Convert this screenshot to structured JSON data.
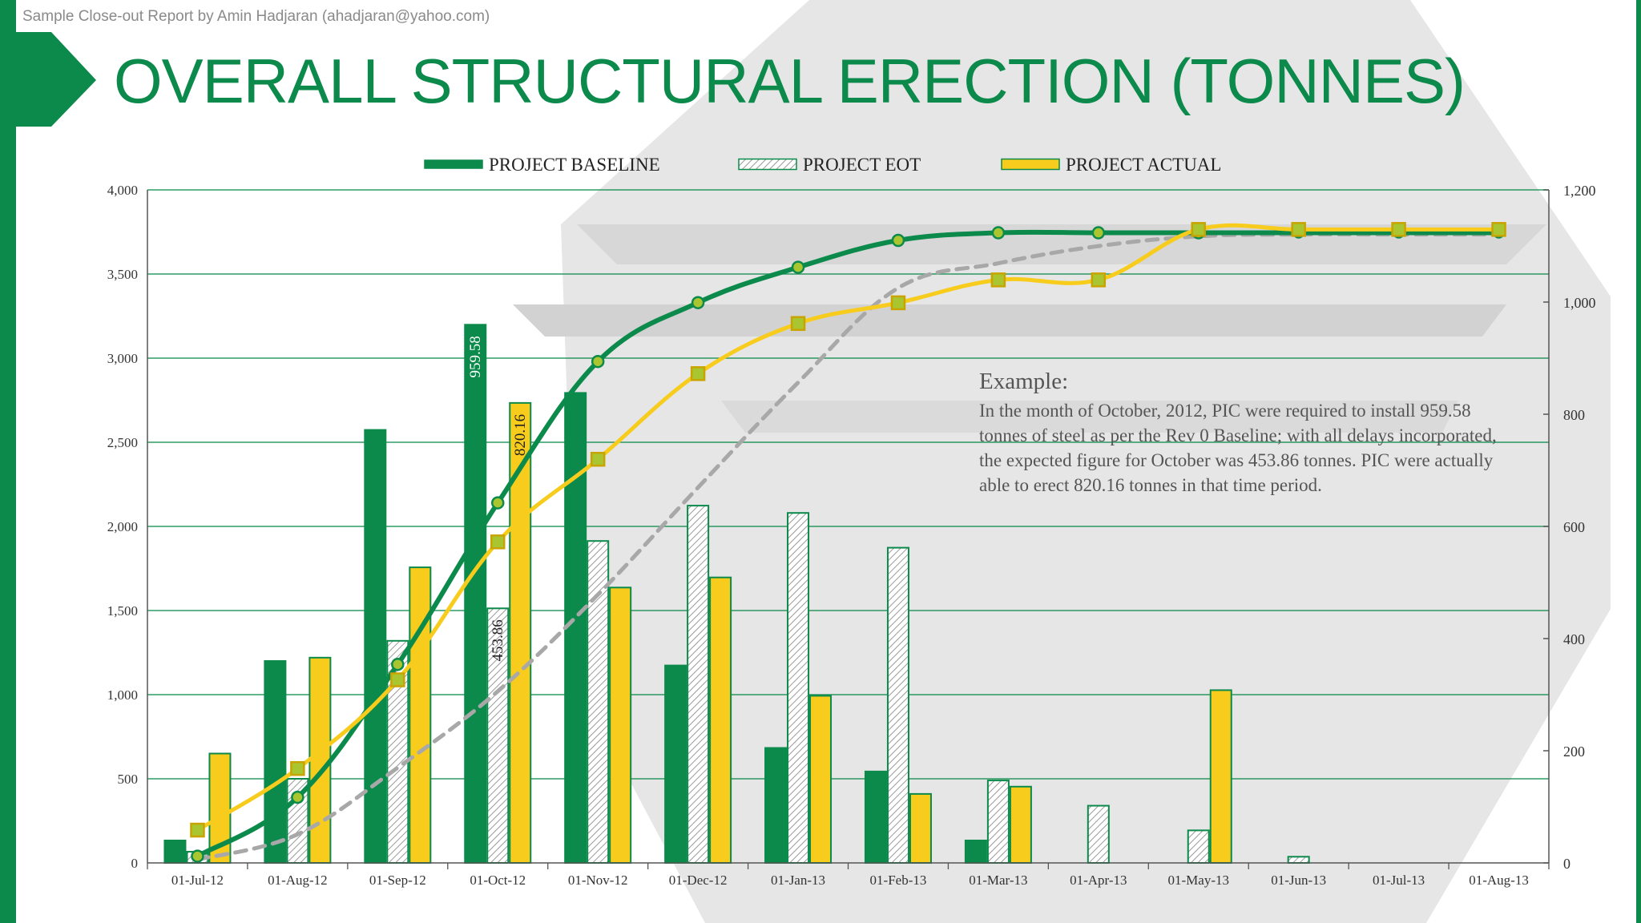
{
  "slide": {
    "credit": "Sample Close-out Report by Amin Hadjaran (ahadjaran@yahoo.com)",
    "title": "OVERALL STRUCTURAL ERECTION (TONNES)"
  },
  "colors": {
    "green": "#0b8a4b",
    "yellow": "#f7cc1c",
    "gray": "#a8a8a8",
    "text": "#333333"
  },
  "annotation": {
    "heading": "Example:",
    "body": "In the month of October, 2012, PIC were required to install 959.58 tonnes of steel as per the Rev 0 Baseline; with all delays incorporated, the expected figure for October was 453.86 tonnes. PIC were actually able to erect 820.16 tonnes in that time period."
  },
  "chart_data": {
    "type": "bar",
    "title": "OVERALL STRUCTURAL ERECTION (TONNES)",
    "categories": [
      "01-Jul-12",
      "01-Aug-12",
      "01-Sep-12",
      "01-Oct-12",
      "01-Nov-12",
      "01-Dec-12",
      "01-Jan-13",
      "01-Feb-13",
      "01-Mar-13",
      "01-Apr-13",
      "01-May-13",
      "01-Jun-13",
      "01-Jul-13",
      "01-Aug-13"
    ],
    "left_axis": {
      "min": 0,
      "max": 4000,
      "ticks": [
        0,
        500,
        1000,
        1500,
        2000,
        2500,
        3000,
        3500,
        4000
      ],
      "tick_labels": [
        "0",
        "500",
        "1,000",
        "1,500",
        "2,000",
        "2,500",
        "3,000",
        "3,500",
        "4,000"
      ]
    },
    "right_axis": {
      "min": 0,
      "max": 1200,
      "ticks": [
        0,
        200,
        400,
        600,
        800,
        1000,
        1200
      ],
      "tick_labels": [
        "0",
        "200",
        "400",
        "600",
        "800",
        "1,000",
        "1,200"
      ]
    },
    "legend": [
      {
        "name": "PROJECT BASELINE",
        "style": "solid-green"
      },
      {
        "name": "PROJECT EOT",
        "style": "hatched-gray"
      },
      {
        "name": "PROJECT ACTUAL",
        "style": "solid-yellow"
      }
    ],
    "bars_axis": "right",
    "bars": [
      {
        "name": "PROJECT BASELINE",
        "values": [
          40,
          360,
          772,
          959.58,
          838,
          352,
          205,
          163,
          40,
          0,
          0,
          0,
          0,
          0
        ]
      },
      {
        "name": "PROJECT EOT",
        "values": [
          20,
          150,
          396,
          453.86,
          574,
          637,
          624,
          562,
          147,
          102,
          58,
          11,
          0,
          0
        ]
      },
      {
        "name": "PROJECT ACTUAL",
        "values": [
          195,
          366,
          527,
          820.16,
          491,
          509,
          298,
          123,
          136,
          0,
          308,
          0,
          0,
          0
        ]
      }
    ],
    "lines_axis": "left",
    "lines": [
      {
        "name": "PROJECT BASELINE cumulative",
        "values": [
          40,
          390,
          1180,
          2140,
          2980,
          3330,
          3540,
          3700,
          3745,
          3745,
          3745,
          3745,
          3745,
          3745
        ]
      },
      {
        "name": "PROJECT EOT cumulative",
        "values": [
          20,
          170,
          566,
          1020,
          1594,
          2231,
          2855,
          3417,
          3564,
          3666,
          3724,
          3735,
          3735,
          3735
        ]
      },
      {
        "name": "PROJECT ACTUAL cumulative",
        "values": [
          195,
          561,
          1088,
          1908,
          2399,
          2908,
          3206,
          3329,
          3465,
          3465,
          3765,
          3765,
          3765,
          3765
        ]
      }
    ],
    "data_labels": [
      {
        "series": "PROJECT BASELINE",
        "category": "01-Oct-12",
        "text": "959.58"
      },
      {
        "series": "PROJECT EOT",
        "category": "01-Oct-12",
        "text": "453.86"
      },
      {
        "series": "PROJECT ACTUAL",
        "category": "01-Oct-12",
        "text": "820.16"
      }
    ]
  }
}
